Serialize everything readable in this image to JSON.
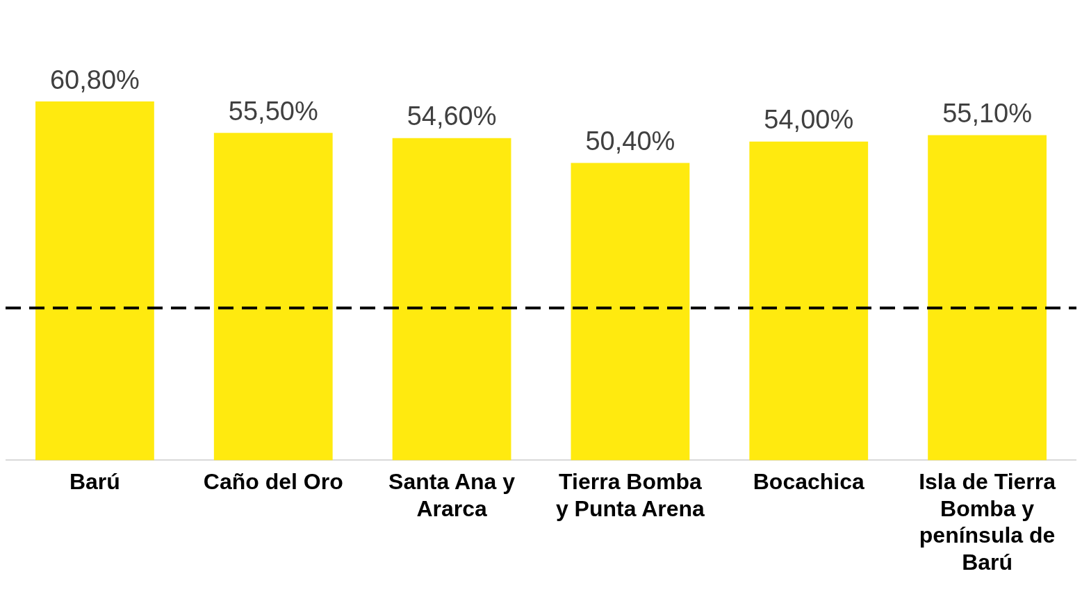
{
  "chart_data": {
    "type": "bar",
    "categories": [
      "Barú",
      "Caño del Oro",
      "Santa Ana y Ararca",
      "Tierra Bomba y Punta Arena",
      "Bocachica",
      "Isla de Tierra Bomba y península de Barú"
    ],
    "values": [
      60.8,
      55.5,
      54.6,
      50.4,
      54.0,
      55.1
    ],
    "value_labels": [
      "60,80%",
      "55,50%",
      "54,60%",
      "50,40%",
      "54,00%",
      "55,10%"
    ],
    "color": "#ffea0f",
    "tick_labels": "x",
    "grid": false,
    "legend": false,
    "ref_lines": [
      {
        "axis": "y",
        "value": 25.8,
        "color": "#000000",
        "line_style": "dashed"
      }
    ]
  }
}
